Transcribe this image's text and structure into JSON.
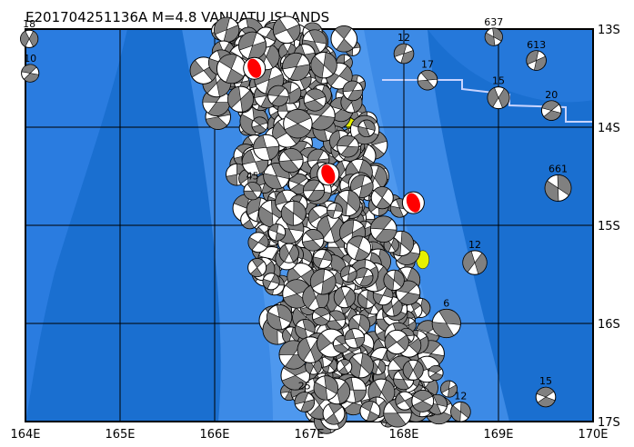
{
  "title": "E201704251136A  M=4.8  VANUATU  ISLANDS",
  "region": {
    "lon_range": [
      164,
      170
    ],
    "lat_range": [
      -17,
      -13
    ]
  },
  "lon_ticks": [
    "164E",
    "165E",
    "166E",
    "167E",
    "168E",
    "169E",
    "170E"
  ],
  "lat_ticks": [
    "13S",
    "14S",
    "15S",
    "16S",
    "17S"
  ],
  "colors": {
    "ocean_deep": "#1a6fd0",
    "ocean_shallow": "#3c8ae6",
    "trench": "#2a7ce0",
    "island": "#e6f000",
    "mechanism_fill": "#808080",
    "highlight_event": "#ff0000",
    "boundary": "#c8d4ff"
  },
  "labeled_events": [
    {
      "lon": 164.04,
      "lat": -13.1,
      "depth": "18",
      "size": 8
    },
    {
      "lon": 164.05,
      "lat": -13.45,
      "depth": "10",
      "size": 8
    },
    {
      "lon": 168.95,
      "lat": -13.08,
      "depth": "637",
      "size": 8
    },
    {
      "lon": 169.4,
      "lat": -13.32,
      "depth": "613",
      "size": 9
    },
    {
      "lon": 168.25,
      "lat": -13.52,
      "depth": "17",
      "size": 9
    },
    {
      "lon": 169.0,
      "lat": -13.7,
      "depth": "15",
      "size": 10
    },
    {
      "lon": 169.56,
      "lat": -13.83,
      "depth": "20",
      "size": 9
    },
    {
      "lon": 169.63,
      "lat": -14.62,
      "depth": "661",
      "size": 12
    },
    {
      "lon": 168.0,
      "lat": -13.25,
      "depth": "12",
      "size": 9
    },
    {
      "lon": 166.4,
      "lat": -14.65,
      "depth": "45",
      "size": 8
    },
    {
      "lon": 168.75,
      "lat": -15.38,
      "depth": "12",
      "size": 11
    },
    {
      "lon": 169.5,
      "lat": -16.75,
      "depth": "15",
      "size": 9
    },
    {
      "lon": 168.6,
      "lat": -16.9,
      "depth": "12",
      "size": 9
    },
    {
      "lon": 166.95,
      "lat": -16.8,
      "depth": "25",
      "size": 9
    },
    {
      "lon": 168.45,
      "lat": -16.0,
      "depth": "6",
      "size": 13
    }
  ],
  "highlight_events": [
    {
      "lon": 166.42,
      "lat": -13.4
    },
    {
      "lon": 167.2,
      "lat": -14.48
    },
    {
      "lon": 168.1,
      "lat": -14.77
    }
  ],
  "islands": [
    {
      "lon": 167.2,
      "lat": -13.85
    },
    {
      "lon": 167.45,
      "lat": -13.95
    },
    {
      "lon": 167.35,
      "lat": -14.2
    },
    {
      "lon": 167.2,
      "lat": -14.92
    },
    {
      "lon": 167.55,
      "lat": -15.2
    },
    {
      "lon": 167.1,
      "lat": -15.35
    },
    {
      "lon": 168.2,
      "lat": -15.35
    },
    {
      "lon": 167.2,
      "lat": -16.35
    },
    {
      "lon": 167.5,
      "lat": -16.3
    },
    {
      "lon": 168.45,
      "lat": -16.05
    },
    {
      "lon": 168.25,
      "lat": -16.8
    },
    {
      "lon": 166.8,
      "lat": -15.3
    }
  ]
}
